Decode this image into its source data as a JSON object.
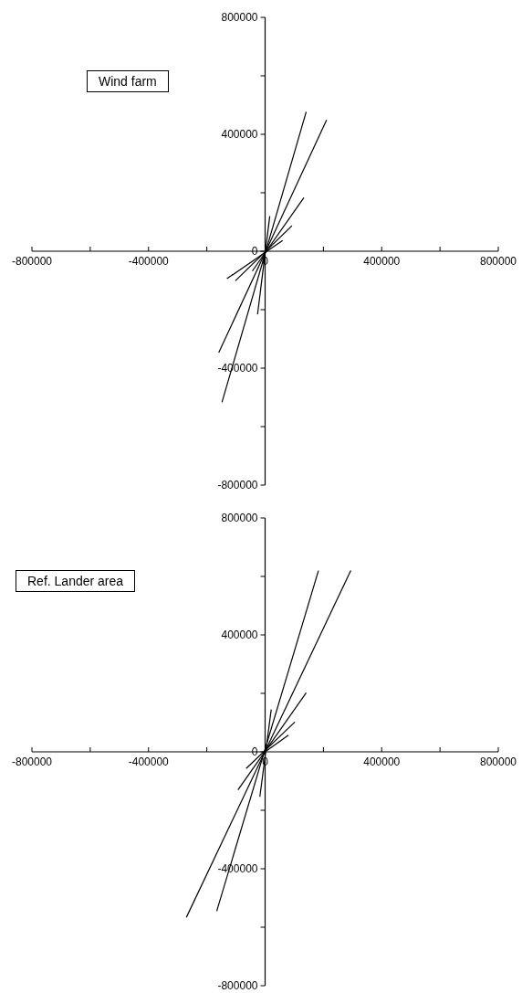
{
  "chart_data": [
    {
      "type": "line",
      "title": "Wind farm",
      "marker": "none",
      "xlim": [
        -800000,
        800000
      ],
      "ylim": [
        -800000,
        800000
      ],
      "xticks": [
        -800000,
        {
          "value": -600000,
          "label": null
        },
        -400000,
        {
          "value": -200000,
          "label": null
        },
        0,
        {
          "value": 200000,
          "label": null
        },
        400000,
        {
          "value": 600000,
          "label": null
        },
        800000
      ],
      "yticks": [
        -800000,
        {
          "value": -600000,
          "label": null
        },
        -400000,
        {
          "value": -200000,
          "label": null
        },
        0,
        {
          "value": 200000,
          "label": null
        },
        400000,
        {
          "value": 600000,
          "label": null
        },
        800000
      ],
      "series": [
        {
          "color": "#000000",
          "x": [
            -148000,
            141000
          ],
          "values": [
            -517000,
            477000
          ]
        },
        {
          "color": "#000000",
          "x": [
            -159000,
            211000
          ],
          "values": [
            -347000,
            449000
          ]
        },
        {
          "color": "#000000",
          "x": [
            -44000,
            133000
          ],
          "values": [
            -68000,
            183000
          ]
        },
        {
          "color": "#000000",
          "x": [
            -102000,
            92000
          ],
          "values": [
            -101000,
            87000
          ]
        },
        {
          "color": "#000000",
          "x": [
            -26000,
            16000
          ],
          "values": [
            -216000,
            120000
          ]
        },
        {
          "color": "#000000",
          "x": [
            -131000,
            60000
          ],
          "values": [
            -94000,
            37000
          ]
        }
      ]
    },
    {
      "type": "line",
      "title": "Ref. Lander area",
      "marker": "none",
      "xlim": [
        -800000,
        800000
      ],
      "ylim": [
        -800000,
        800000
      ],
      "xticks": [
        -800000,
        {
          "value": -600000,
          "label": null
        },
        -400000,
        {
          "value": -200000,
          "label": null
        },
        0,
        {
          "value": 200000,
          "label": null
        },
        400000,
        {
          "value": 600000,
          "label": null
        },
        800000
      ],
      "yticks": [
        -800000,
        {
          "value": -600000,
          "label": null
        },
        -400000,
        {
          "value": -200000,
          "label": null
        },
        0,
        {
          "value": 200000,
          "label": null
        },
        400000,
        {
          "value": 600000,
          "label": null
        },
        800000
      ],
      "series": [
        {
          "color": "#000000",
          "x": [
            -166000,
            183000
          ],
          "values": [
            -545000,
            620000
          ]
        },
        {
          "color": "#000000",
          "x": [
            -270000,
            294000
          ],
          "values": [
            -566000,
            620000
          ]
        },
        {
          "color": "#000000",
          "x": [
            -93000,
            141000
          ],
          "values": [
            -130000,
            202000
          ]
        },
        {
          "color": "#000000",
          "x": [
            -65000,
            102000
          ],
          "values": [
            -57000,
            102000
          ]
        },
        {
          "color": "#000000",
          "x": [
            -18000,
            21000
          ],
          "values": [
            -154000,
            145000
          ]
        },
        {
          "color": "#000000",
          "x": [
            0,
            80000
          ],
          "values": [
            0,
            57000
          ]
        }
      ]
    }
  ]
}
